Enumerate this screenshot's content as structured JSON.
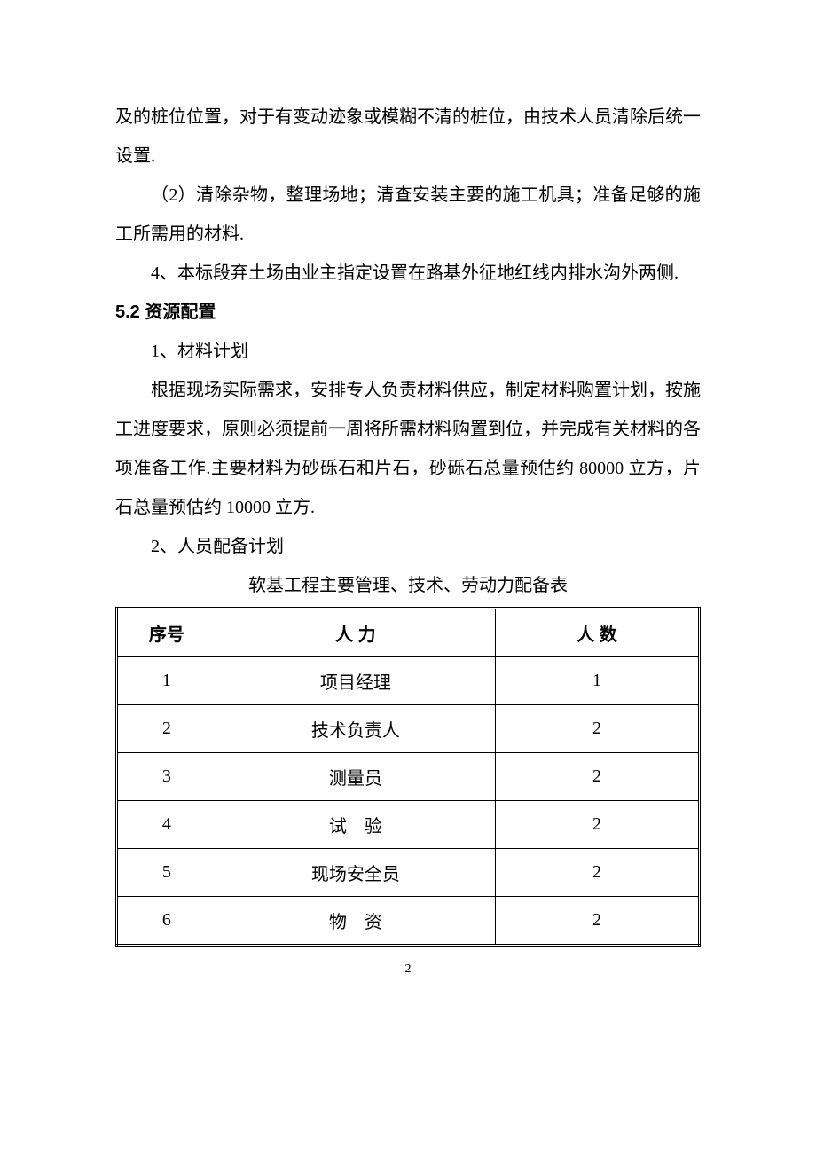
{
  "para1": "及的桩位位置，对于有变动迹象或模糊不清的桩位，由技术人员清除后统一设置.",
  "para2": "（2）清除杂物，整理场地；清查安装主要的施工机具；准备足够的施工所需用的材料.",
  "para3": "4、本标段弃土场由业主指定设置在路基外征地红线内排水沟外两侧.",
  "heading": "5.2 资源配置",
  "para4": "1、材料计划",
  "para5": "根据现场实际需求，安排专人负责材料供应，制定材料购置计划，按施工进度要求，原则必须提前一周将所需材料购置到位，并完成有关材料的各项准备工作.主要材料为砂砾石和片石，砂砾石总量预估约 80000 立方，片石总量预估约 10000 立方.",
  "para6": "2、人员配备计划",
  "table": {
    "title": "软基工程主要管理、技术、劳动力配备表",
    "columns": [
      "序号",
      "人 力",
      "人 数"
    ],
    "rows": [
      [
        "1",
        "项目经理",
        "1"
      ],
      [
        "2",
        "技术负责人",
        "2"
      ],
      [
        "3",
        "测量员",
        "2"
      ],
      [
        "4",
        "试　验",
        "2"
      ],
      [
        "5",
        "现场安全员",
        "2"
      ],
      [
        "6",
        "物　资",
        "2"
      ]
    ],
    "col_widths": [
      "17%",
      "48%",
      "35%"
    ]
  },
  "page_number": "2"
}
